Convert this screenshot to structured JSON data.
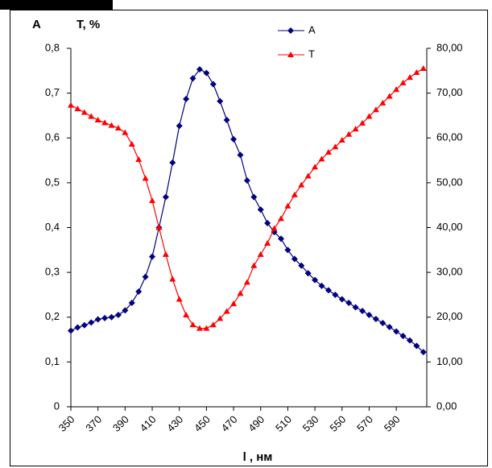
{
  "chart_data": {
    "type": "line",
    "y_axis_label": "A",
    "y2_axis_label": "T, %",
    "x_axis_label": "l , нм",
    "x": [
      350,
      355,
      360,
      365,
      370,
      375,
      380,
      385,
      390,
      395,
      400,
      405,
      410,
      415,
      420,
      425,
      430,
      435,
      440,
      445,
      450,
      455,
      460,
      465,
      470,
      475,
      480,
      485,
      490,
      495,
      500,
      505,
      510,
      515,
      520,
      525,
      530,
      535,
      540,
      545,
      550,
      555,
      560,
      565,
      570,
      575,
      580,
      585,
      590,
      595,
      600,
      605,
      610
    ],
    "xlim": [
      350,
      612.5
    ],
    "xticks": [
      350,
      370,
      390,
      410,
      430,
      450,
      470,
      490,
      510,
      530,
      550,
      570,
      590
    ],
    "ylim": [
      0,
      0.8
    ],
    "yticks": [
      0,
      {
        "value": 0.1,
        "label": "0,1"
      },
      {
        "value": 0.2,
        "label": "0,2"
      },
      {
        "value": 0.3,
        "label": "0,3"
      },
      {
        "value": 0.4,
        "label": "0,4"
      },
      {
        "value": 0.5,
        "label": "0,5"
      },
      {
        "value": 0.6,
        "label": "0,6"
      },
      {
        "value": 0.7,
        "label": "0,7"
      },
      {
        "value": 0.8,
        "label": "0,8"
      }
    ],
    "y2lim": [
      0,
      80
    ],
    "y2ticks": [
      {
        "value": 0,
        "label": "0,00"
      },
      {
        "value": 10,
        "label": "10,00"
      },
      {
        "value": 20,
        "label": "20,00"
      },
      {
        "value": 30,
        "label": "30,00"
      },
      {
        "value": 40,
        "label": "40,00"
      },
      {
        "value": 50,
        "label": "50,00"
      },
      {
        "value": 60,
        "label": "60,00"
      },
      {
        "value": 70,
        "label": "70,00"
      },
      {
        "value": 80,
        "label": "80,00"
      }
    ],
    "series": [
      {
        "name": "A",
        "color": "#000080",
        "marker": "diamond",
        "values": [
          0.17,
          0.177,
          0.182,
          0.188,
          0.195,
          0.198,
          0.2,
          0.205,
          0.215,
          0.232,
          0.257,
          0.29,
          0.335,
          0.4,
          0.468,
          0.545,
          0.627,
          0.687,
          0.733,
          0.753,
          0.745,
          0.72,
          0.682,
          0.64,
          0.597,
          0.562,
          0.505,
          0.468,
          0.44,
          0.41,
          0.39,
          0.375,
          0.35,
          0.33,
          0.315,
          0.298,
          0.283,
          0.27,
          0.26,
          0.25,
          0.24,
          0.232,
          0.222,
          0.214,
          0.205,
          0.196,
          0.187,
          0.178,
          0.168,
          0.158,
          0.148,
          0.136,
          0.122
        ]
      },
      {
        "name": "T",
        "color": "#ff0000",
        "marker": "triangle",
        "axis": "y2",
        "values": [
          67.3,
          66.5,
          65.7,
          64.8,
          64,
          63.4,
          62.8,
          62.2,
          61.2,
          58.6,
          55.2,
          51,
          46,
          40,
          34,
          28.5,
          24,
          20.5,
          18.3,
          17.5,
          17.5,
          18.3,
          19.7,
          21.3,
          23,
          25.3,
          27.8,
          31.5,
          34,
          36.5,
          39.8,
          42,
          44.8,
          47.3,
          49.5,
          51.5,
          53.5,
          55.3,
          56.8,
          58,
          59.5,
          60.8,
          62,
          63.3,
          64.8,
          66.3,
          67.8,
          69.3,
          70.8,
          72.3,
          73.5,
          74.6,
          75.5
        ]
      }
    ]
  }
}
